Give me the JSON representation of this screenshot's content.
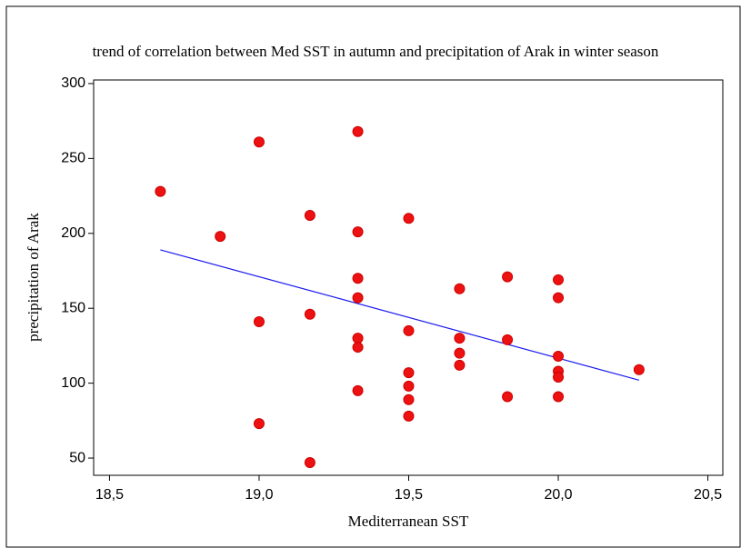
{
  "chart_data": {
    "type": "scatter",
    "title": "trend of correlation between Med SST in autumn  and precipitation of Arak  in winter season",
    "x_label": "Mediterranean SST",
    "y_label": "precipitation of Arak",
    "color": "#ee1111",
    "x": [
      18.67,
      18.87,
      19.0,
      19.0,
      19.0,
      19.17,
      19.17,
      19.17,
      19.33,
      19.33,
      19.33,
      19.33,
      19.33,
      19.33,
      19.33,
      19.5,
      19.5,
      19.5,
      19.5,
      19.5,
      19.5,
      19.67,
      19.67,
      19.67,
      19.67,
      19.83,
      19.83,
      19.83,
      20.0,
      20.0,
      20.0,
      20.0,
      20.0,
      20.0,
      20.27
    ],
    "values": [
      228,
      198,
      261,
      141,
      73,
      212,
      146,
      47,
      268,
      201,
      170,
      157,
      130,
      124,
      95,
      210,
      135,
      107,
      98,
      89,
      78,
      163,
      130,
      120,
      112,
      171,
      129,
      91,
      169,
      157,
      118,
      108,
      104,
      91,
      109
    ],
    "trend_line": {
      "x": [
        18.67,
        20.27
      ],
      "values": [
        189,
        102
      ],
      "color": "#1a1aee"
    },
    "xlim": [
      18.447,
      20.55
    ],
    "ylim": [
      38.5,
      302.4
    ],
    "xticks": [
      {
        "value": 18.5,
        "label": "18,5"
      },
      {
        "value": 19.0,
        "label": "19,0"
      },
      {
        "value": 19.5,
        "label": "19,5"
      },
      {
        "value": 20.0,
        "label": "20,0"
      },
      {
        "value": 20.5,
        "label": "20,5"
      }
    ],
    "yticks": [
      50,
      100,
      150,
      200,
      250,
      300
    ]
  }
}
